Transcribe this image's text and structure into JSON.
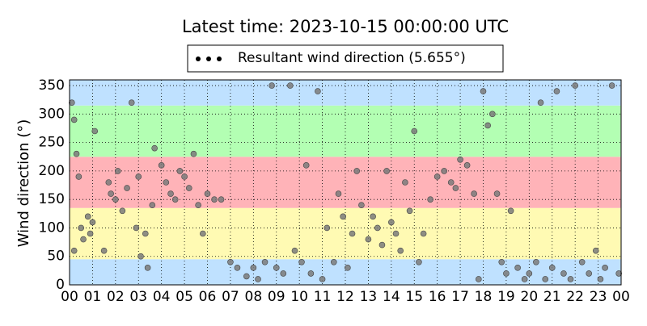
{
  "chart_data": {
    "type": "scatter",
    "title": "Latest time: 2023-10-15 00:00:00 UTC",
    "ylabel": "Wind direction (°)",
    "xlim": [
      0,
      24
    ],
    "ylim": [
      0,
      360
    ],
    "xticks": [
      {
        "value": 0,
        "label": "00"
      },
      {
        "value": 1,
        "label": "01"
      },
      {
        "value": 2,
        "label": "02"
      },
      {
        "value": 3,
        "label": "03"
      },
      {
        "value": 4,
        "label": "04"
      },
      {
        "value": 5,
        "label": "05"
      },
      {
        "value": 6,
        "label": "06"
      },
      {
        "value": 7,
        "label": "07"
      },
      {
        "value": 8,
        "label": "08"
      },
      {
        "value": 9,
        "label": "09"
      },
      {
        "value": 10,
        "label": "10"
      },
      {
        "value": 11,
        "label": "11"
      },
      {
        "value": 12,
        "label": "12"
      },
      {
        "value": 13,
        "label": "13"
      },
      {
        "value": 14,
        "label": "14"
      },
      {
        "value": 15,
        "label": "15"
      },
      {
        "value": 16,
        "label": "16"
      },
      {
        "value": 17,
        "label": "17"
      },
      {
        "value": 18,
        "label": "18"
      },
      {
        "value": 19,
        "label": "19"
      },
      {
        "value": 20,
        "label": "20"
      },
      {
        "value": 21,
        "label": "21"
      },
      {
        "value": 22,
        "label": "22"
      },
      {
        "value": 23,
        "label": "23"
      },
      {
        "value": 24,
        "label": "00"
      }
    ],
    "yticks": [
      0,
      50,
      100,
      150,
      200,
      250,
      300,
      350
    ],
    "grid": true,
    "bands": [
      {
        "from": 0,
        "to": 45,
        "color": "#bfe1ff"
      },
      {
        "from": 45,
        "to": 135,
        "color": "#fffab3"
      },
      {
        "from": 135,
        "to": 225,
        "color": "#ffb3b8"
      },
      {
        "from": 225,
        "to": 315,
        "color": "#b3ffb3"
      },
      {
        "from": 315,
        "to": 360,
        "color": "#bfe1ff"
      }
    ],
    "series": [
      {
        "name": "Resultant wind direction (5.655°)",
        "color": "#7a7a7a",
        "x": [
          0.1,
          0.2,
          0.3,
          0.5,
          0.6,
          0.8,
          0.9,
          1.0,
          1.1,
          0.4,
          0.2,
          1.5,
          1.7,
          1.8,
          2.0,
          2.1,
          2.3,
          2.5,
          2.7,
          2.9,
          3.1,
          3.3,
          3.0,
          3.4,
          3.6,
          3.7,
          4.0,
          4.2,
          4.4,
          4.6,
          4.8,
          5.0,
          5.2,
          5.4,
          5.6,
          5.8,
          6.0,
          6.3,
          6.6,
          7.0,
          7.3,
          7.7,
          8.0,
          8.2,
          8.5,
          8.8,
          9.0,
          9.3,
          9.6,
          9.8,
          10.1,
          10.3,
          10.5,
          10.8,
          11.0,
          11.2,
          11.5,
          11.7,
          11.9,
          12.1,
          12.3,
          12.5,
          12.7,
          13.0,
          13.2,
          13.4,
          13.6,
          13.8,
          14.0,
          14.2,
          14.4,
          14.6,
          14.8,
          15.0,
          15.2,
          15.4,
          15.7,
          16.0,
          16.3,
          16.6,
          16.8,
          17.0,
          17.3,
          17.6,
          17.8,
          18.0,
          18.2,
          18.4,
          18.6,
          18.8,
          19.0,
          19.2,
          19.5,
          19.8,
          20.0,
          20.3,
          20.5,
          20.7,
          21.0,
          21.2,
          21.5,
          21.8,
          22.0,
          22.3,
          22.6,
          22.9,
          23.1,
          23.3,
          23.6,
          23.9
        ],
        "values": [
          320,
          290,
          230,
          100,
          80,
          120,
          90,
          110,
          270,
          190,
          60,
          60,
          180,
          160,
          150,
          200,
          130,
          170,
          320,
          100,
          50,
          90,
          190,
          30,
          140,
          240,
          210,
          180,
          160,
          150,
          200,
          190,
          170,
          230,
          140,
          90,
          160,
          150,
          150,
          40,
          30,
          15,
          30,
          10,
          40,
          350,
          30,
          20,
          350,
          60,
          40,
          210,
          20,
          340,
          10,
          100,
          40,
          160,
          120,
          30,
          90,
          200,
          140,
          80,
          120,
          100,
          70,
          200,
          110,
          90,
          60,
          180,
          130,
          270,
          40,
          90,
          150,
          190,
          200,
          180,
          170,
          220,
          210,
          160,
          10,
          340,
          280,
          300,
          160,
          40,
          20,
          130,
          30,
          10,
          20,
          40,
          320,
          10,
          30,
          340,
          20,
          10,
          350,
          40,
          20,
          60,
          10,
          30,
          350,
          20
        ]
      }
    ]
  }
}
